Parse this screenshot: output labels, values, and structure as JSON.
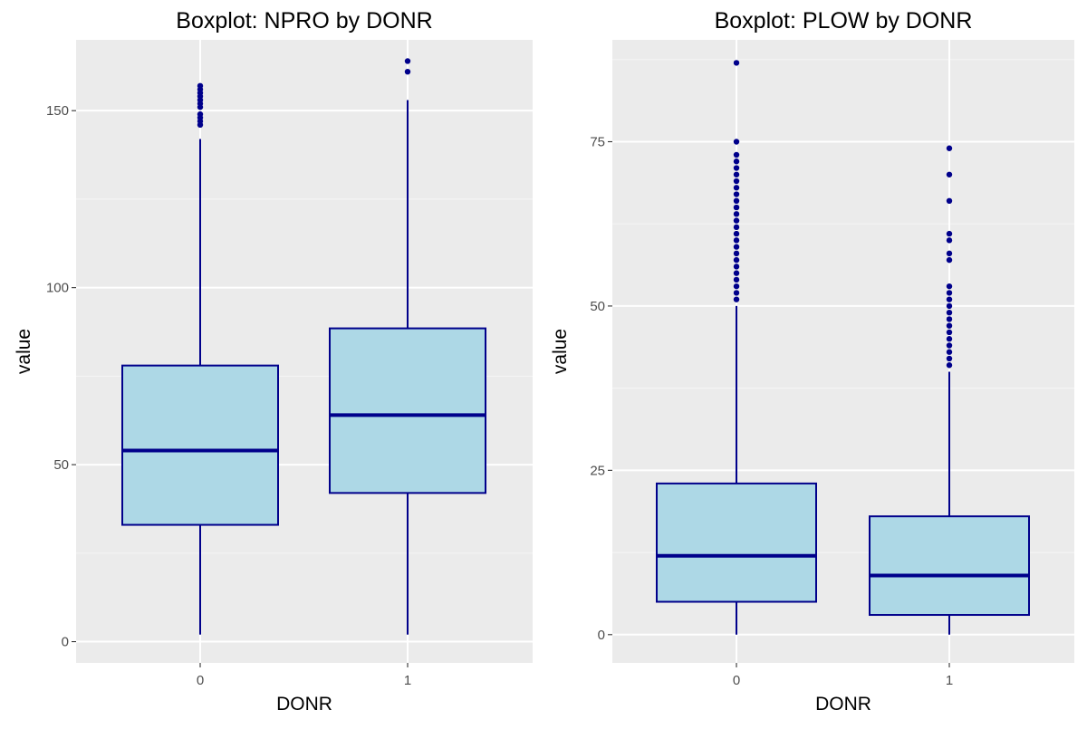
{
  "colors": {
    "panel_bg": "#ebebeb",
    "grid_major": "#ffffff",
    "grid_minor": "#f5f5f5",
    "box_fill": "#add8e6",
    "box_outline": "#00008b",
    "outlier": "#00008b",
    "tick": "#333333"
  },
  "chart_data": [
    {
      "type": "boxplot",
      "title": "Boxplot: NPRO by DONR",
      "xlabel": "DONR",
      "ylabel": "value",
      "categories": [
        "0",
        "1"
      ],
      "ylim": [
        -6,
        170
      ],
      "yticks": [
        0,
        50,
        100,
        150
      ],
      "yticks_labels": [
        "0",
        "50",
        "100",
        "150"
      ],
      "minor_yticks": [
        25,
        75,
        125
      ],
      "grid": true,
      "boxes": [
        {
          "category": "0",
          "whisker_low": 2,
          "q1": 33,
          "median": 54,
          "q3": 78,
          "whisker_high": 142,
          "outliers": [
            146,
            147,
            148,
            149,
            151,
            152,
            153,
            154,
            155,
            156,
            157
          ]
        },
        {
          "category": "1",
          "whisker_low": 2,
          "q1": 42,
          "median": 64,
          "q3": 88.5,
          "whisker_high": 153,
          "outliers": [
            161,
            164
          ]
        }
      ]
    },
    {
      "type": "boxplot",
      "title": "Boxplot: PLOW by DONR",
      "xlabel": "DONR",
      "ylabel": "value",
      "categories": [
        "0",
        "1"
      ],
      "ylim": [
        -4.3,
        90.5
      ],
      "yticks": [
        0,
        25,
        50,
        75
      ],
      "yticks_labels": [
        "0",
        "25",
        "50",
        "75"
      ],
      "minor_yticks": [
        12.5,
        37.5,
        62.5,
        87.5
      ],
      "grid": true,
      "boxes": [
        {
          "category": "0",
          "whisker_low": 0,
          "q1": 5,
          "median": 12,
          "q3": 23,
          "whisker_high": 50,
          "outliers": [
            51,
            52,
            53,
            54,
            55,
            56,
            57,
            58,
            59,
            60,
            61,
            62,
            63,
            64,
            65,
            66,
            67,
            68,
            69,
            70,
            71,
            72,
            73,
            75,
            87
          ]
        },
        {
          "category": "1",
          "whisker_low": 0,
          "q1": 3,
          "median": 9,
          "q3": 18,
          "whisker_high": 40,
          "outliers": [
            41,
            42,
            43,
            44,
            45,
            46,
            47,
            48,
            49,
            50,
            51,
            52,
            53,
            57,
            58,
            60,
            61,
            66,
            70,
            74
          ]
        }
      ]
    }
  ]
}
